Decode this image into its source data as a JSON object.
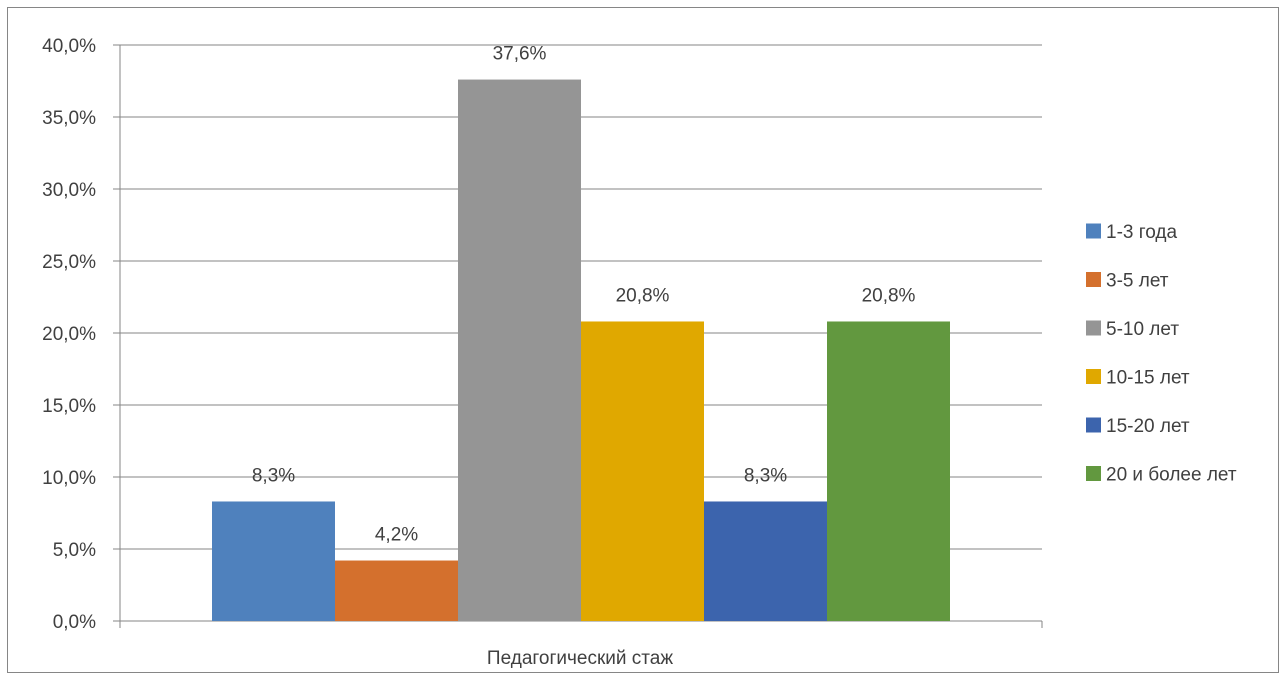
{
  "chart_data": {
    "type": "bar",
    "title": "",
    "xlabel": "Педагогический стаж",
    "ylabel": "",
    "categories": [
      "Педагогический стаж"
    ],
    "ylim": [
      0,
      40
    ],
    "y_ticks": [
      0,
      5,
      10,
      15,
      20,
      25,
      30,
      35,
      40
    ],
    "y_tick_labels": [
      "0,0%",
      "5,0%",
      "10,0%",
      "15,0%",
      "20,0%",
      "25,0%",
      "30,0%",
      "35,0%",
      "40,0%"
    ],
    "grid": true,
    "legend_position": "right",
    "series": [
      {
        "name": "1-3 года",
        "values": [
          8.3
        ],
        "label": "8,3%",
        "color": "#4F81BD"
      },
      {
        "name": "3-5 лет",
        "values": [
          4.2
        ],
        "label": "4,2%",
        "color": "#D4702D"
      },
      {
        "name": "5-10 лет",
        "values": [
          37.6
        ],
        "label": "37,6%",
        "color": "#959595"
      },
      {
        "name": "10-15 лет",
        "values": [
          20.8
        ],
        "label": "20,8%",
        "color": "#E0A800"
      },
      {
        "name": "15-20 лет",
        "values": [
          8.3
        ],
        "label": "8,3%",
        "color": "#3C64AD"
      },
      {
        "name": "20 и более лет",
        "values": [
          20.8
        ],
        "label": "20,8%",
        "color": "#62983F"
      }
    ]
  }
}
